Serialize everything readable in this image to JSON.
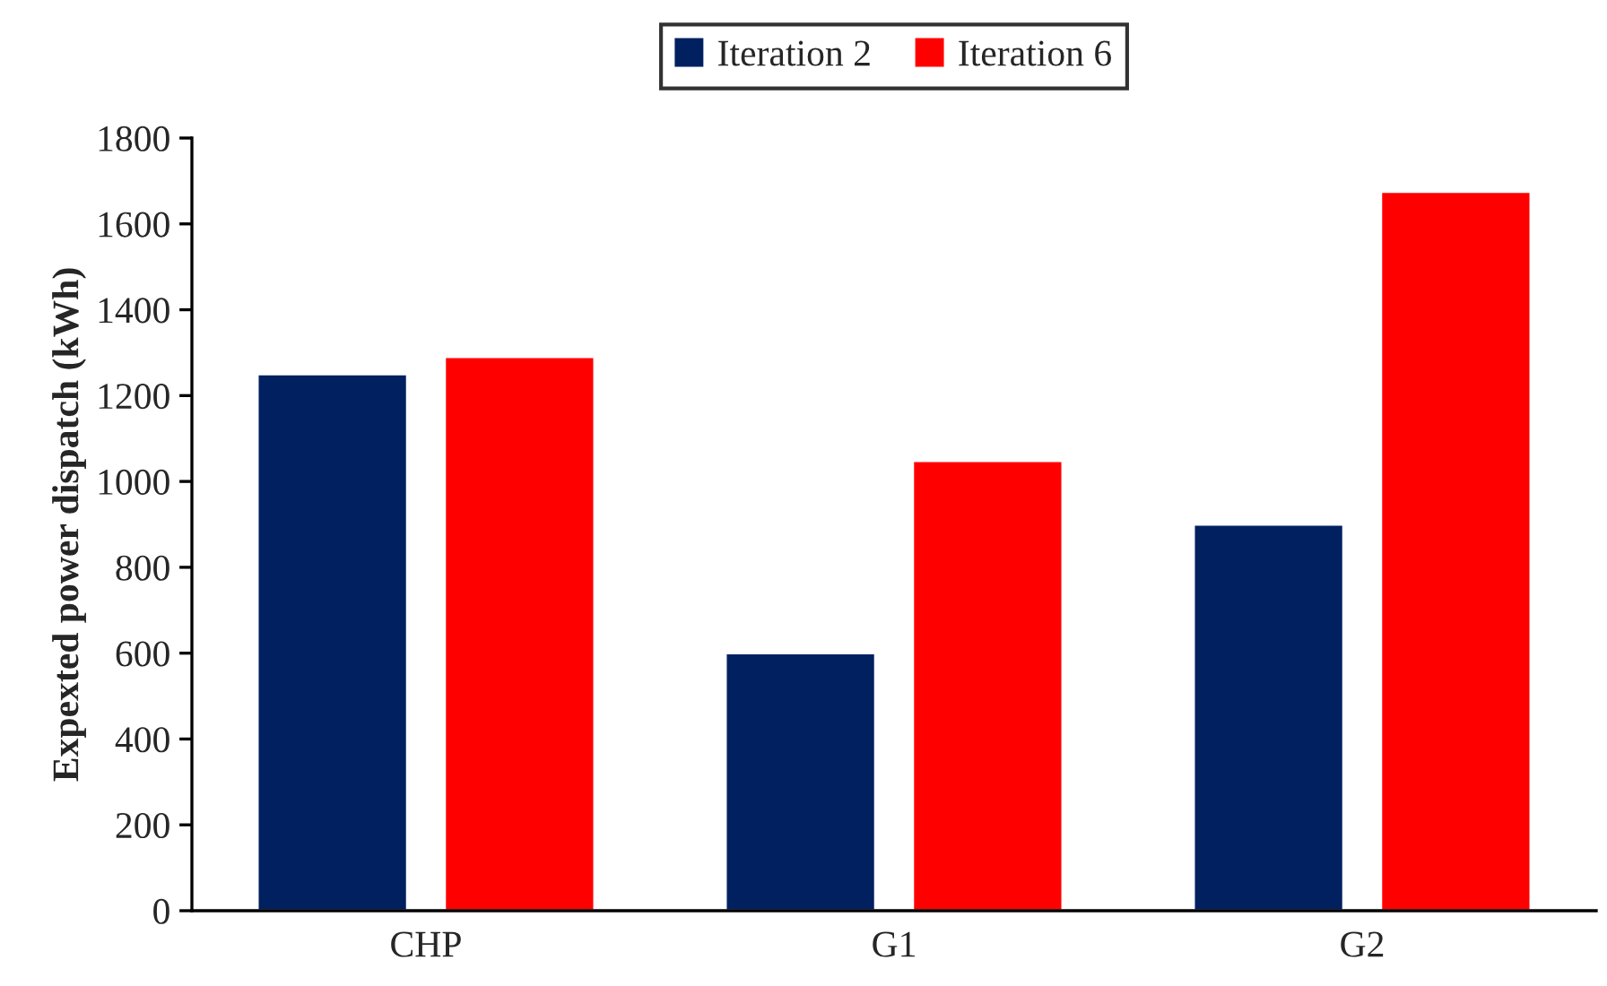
{
  "chart_data": {
    "type": "bar",
    "ylabel": "Expexted power dispatch (kWh)",
    "categories": [
      "CHP",
      "G1",
      "G2"
    ],
    "series": [
      {
        "name": "Iteration 2",
        "color": "#002060",
        "values": [
          1250,
          600,
          900
        ]
      },
      {
        "name": "Iteration 6",
        "color": "#ff0000",
        "values": [
          1290,
          1048,
          1675
        ]
      }
    ],
    "ylim": [
      0,
      1800
    ],
    "yticks": [
      0,
      200,
      400,
      600,
      800,
      1000,
      1200,
      1400,
      1600,
      1800
    ],
    "grid": false,
    "legend": "top"
  }
}
